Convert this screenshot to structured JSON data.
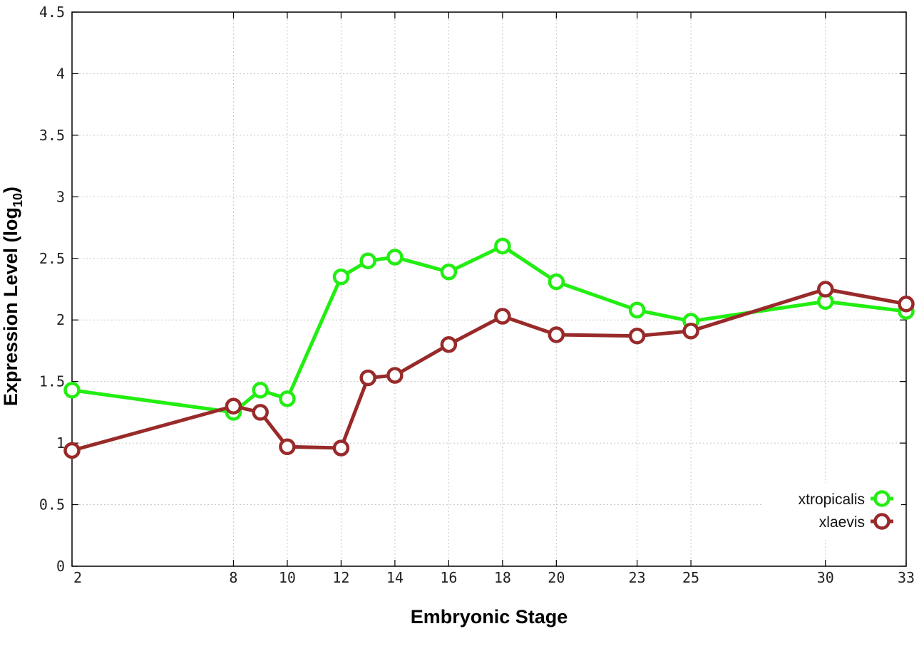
{
  "chart_data": {
    "type": "line",
    "title": "",
    "xlabel": "Embryonic Stage",
    "ylabel_main": "Expression Level (log",
    "ylabel_sub": "10",
    "ylabel_close": ")",
    "xlim": [
      2,
      33
    ],
    "ylim": [
      0,
      4.5
    ],
    "x_ticks": [
      2,
      8,
      10,
      12,
      14,
      16,
      18,
      20,
      23,
      25,
      30,
      33
    ],
    "y_ticks": [
      0,
      0.5,
      1,
      1.5,
      2,
      2.5,
      3,
      3.5,
      4,
      4.5
    ],
    "y_tick_labels": [
      "0",
      "0.5",
      "1",
      "1.5",
      "2",
      "2.5",
      "3",
      "3.5",
      "4",
      "4.5"
    ],
    "grid": true,
    "legend_position": "bottom-right",
    "series": [
      {
        "name": "xtropicalis",
        "color": "#22ee11",
        "x": [
          2,
          8,
          9,
          10,
          12,
          13,
          14,
          16,
          18,
          20,
          23,
          25,
          30,
          33
        ],
        "y": [
          1.43,
          1.25,
          1.43,
          1.36,
          2.35,
          2.48,
          2.51,
          2.39,
          2.6,
          2.31,
          2.08,
          1.99,
          2.15,
          2.07
        ]
      },
      {
        "name": "xlaevis",
        "color": "#992a2a",
        "x": [
          2,
          8,
          9,
          10,
          12,
          13,
          14,
          16,
          18,
          20,
          23,
          25,
          30,
          33
        ],
        "y": [
          0.94,
          1.3,
          1.25,
          0.97,
          0.96,
          1.53,
          1.55,
          1.8,
          2.03,
          1.88,
          1.87,
          1.91,
          2.25,
          2.13
        ]
      }
    ]
  }
}
